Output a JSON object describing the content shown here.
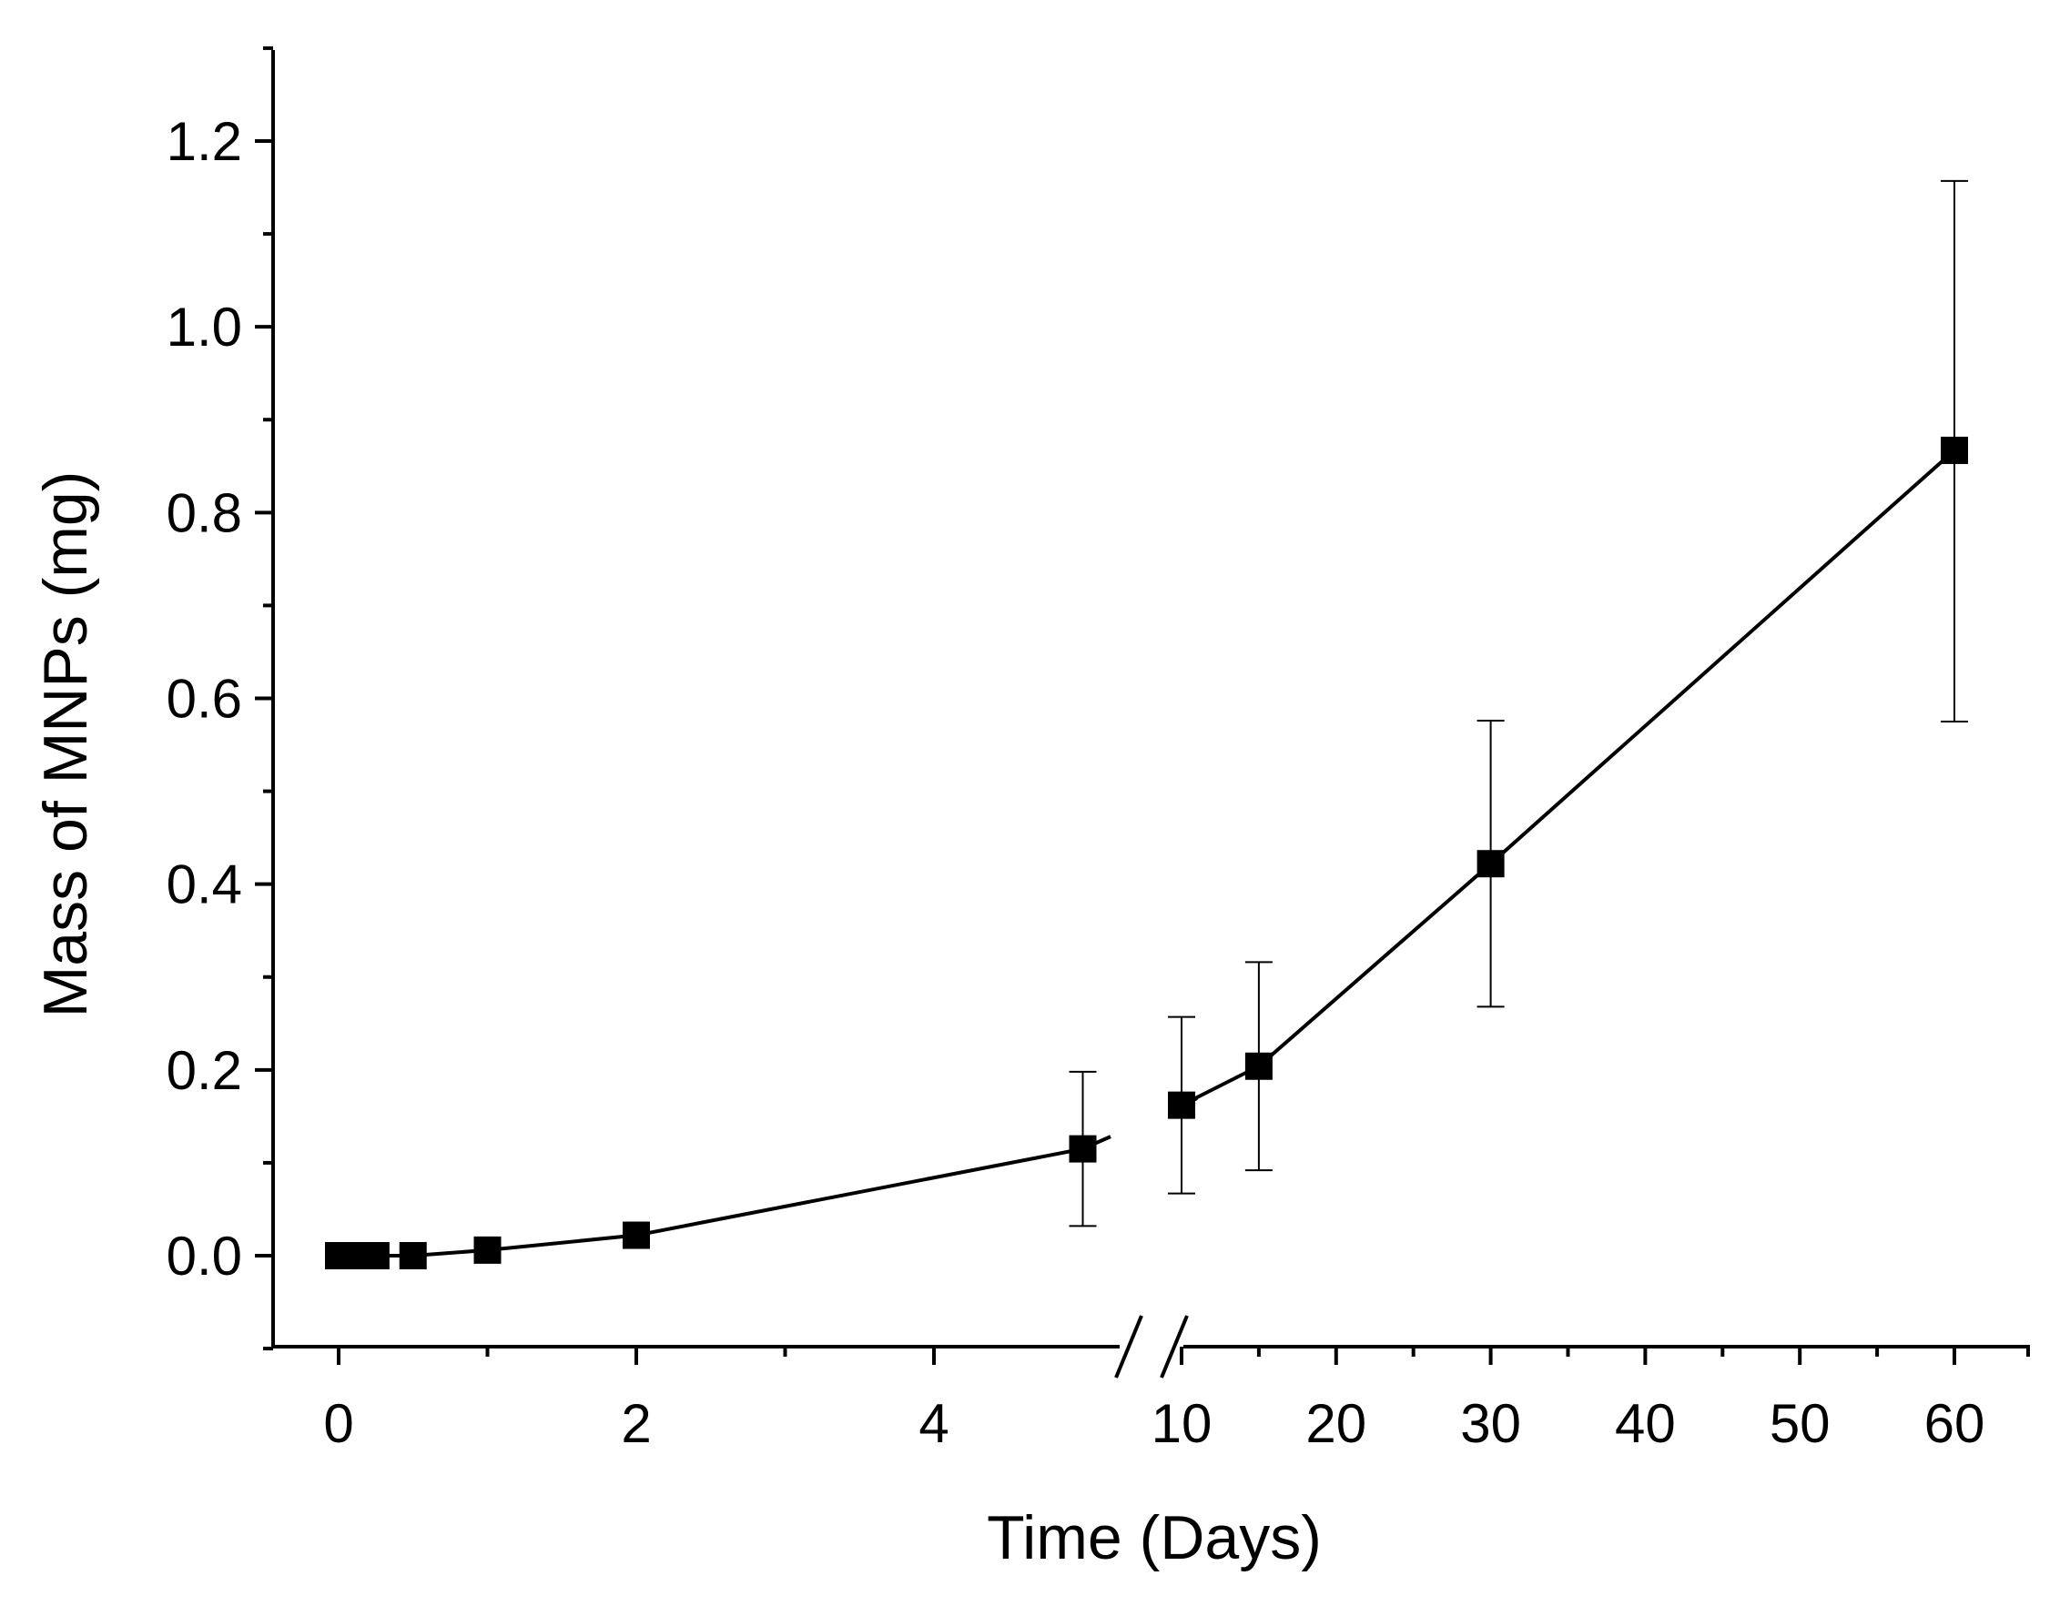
{
  "chart_data": {
    "type": "scatter",
    "title": "",
    "xlabel": "Time (Days)",
    "ylabel": "Mass of MNPs (mg)",
    "ylim": [
      -0.1,
      1.3
    ],
    "grid": false,
    "legend": "none",
    "x_axis_break": {
      "between": [
        5,
        10
      ]
    },
    "x_segments": [
      {
        "range": [
          0,
          5
        ],
        "tick_values": [
          0,
          2,
          4
        ],
        "minor_ticks": [
          1,
          3
        ]
      },
      {
        "range": [
          10,
          60
        ],
        "tick_values": [
          10,
          20,
          30,
          40,
          50,
          60
        ],
        "minor_ticks": [
          15,
          25,
          35,
          45,
          55
        ]
      }
    ],
    "y_ticks": [
      "0.0",
      "0.2",
      "0.4",
      "0.6",
      "0.8",
      "1.0",
      "1.2"
    ],
    "x_tick_labels": [
      "0",
      "2",
      "4",
      "10",
      "20",
      "30",
      "40",
      "50",
      "60"
    ],
    "series": [
      {
        "name": "Mass of MNPs",
        "marker": "square",
        "color": "#000000",
        "points": [
          {
            "x": 0,
            "y": 0.0
          },
          {
            "x": 0.1,
            "y": 0.0
          },
          {
            "x": 0.25,
            "y": 0.0
          },
          {
            "x": 0.5,
            "y": 0.0
          },
          {
            "x": 1,
            "y": 0.006
          },
          {
            "x": 2,
            "y": 0.022
          },
          {
            "x": 5,
            "y": 0.115,
            "err_low": 0.032,
            "err_high": 0.198
          },
          {
            "x": 10,
            "y": 0.162,
            "err_low": 0.067,
            "err_high": 0.257
          },
          {
            "x": 15,
            "y": 0.204,
            "err_low": 0.092,
            "err_high": 0.316
          },
          {
            "x": 30,
            "y": 0.422,
            "err_low": 0.268,
            "err_high": 0.576
          },
          {
            "x": 60,
            "y": 0.867,
            "err_low": 0.575,
            "err_high": 1.157
          }
        ]
      }
    ]
  }
}
